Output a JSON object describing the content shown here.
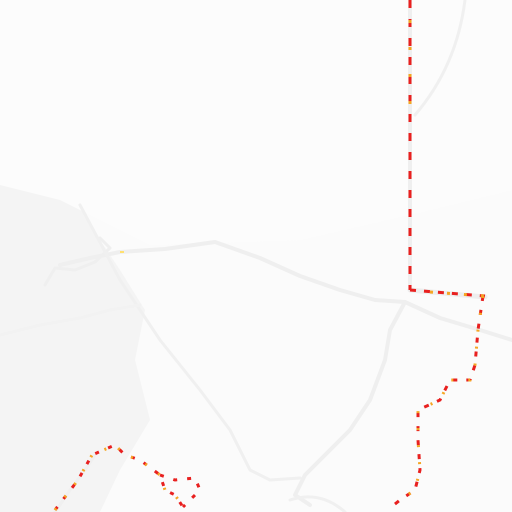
{
  "map": {
    "style": "light traffic tile",
    "colors": {
      "background": "#fbfbfb",
      "land_shade": "#f5f5f5",
      "road": "#f1f1f1",
      "road_outline": "#ececec",
      "traffic_heavy": "#e8201f",
      "traffic_moderate": "#f5a623",
      "traffic_free": "#ffe070"
    },
    "traffic_segments": [
      {
        "name": "north-south-route",
        "level": "heavy"
      },
      {
        "name": "east-connector",
        "level": "heavy"
      },
      {
        "name": "southeast-route",
        "level": "heavy"
      },
      {
        "name": "southwest-route",
        "level": "heavy"
      }
    ]
  }
}
